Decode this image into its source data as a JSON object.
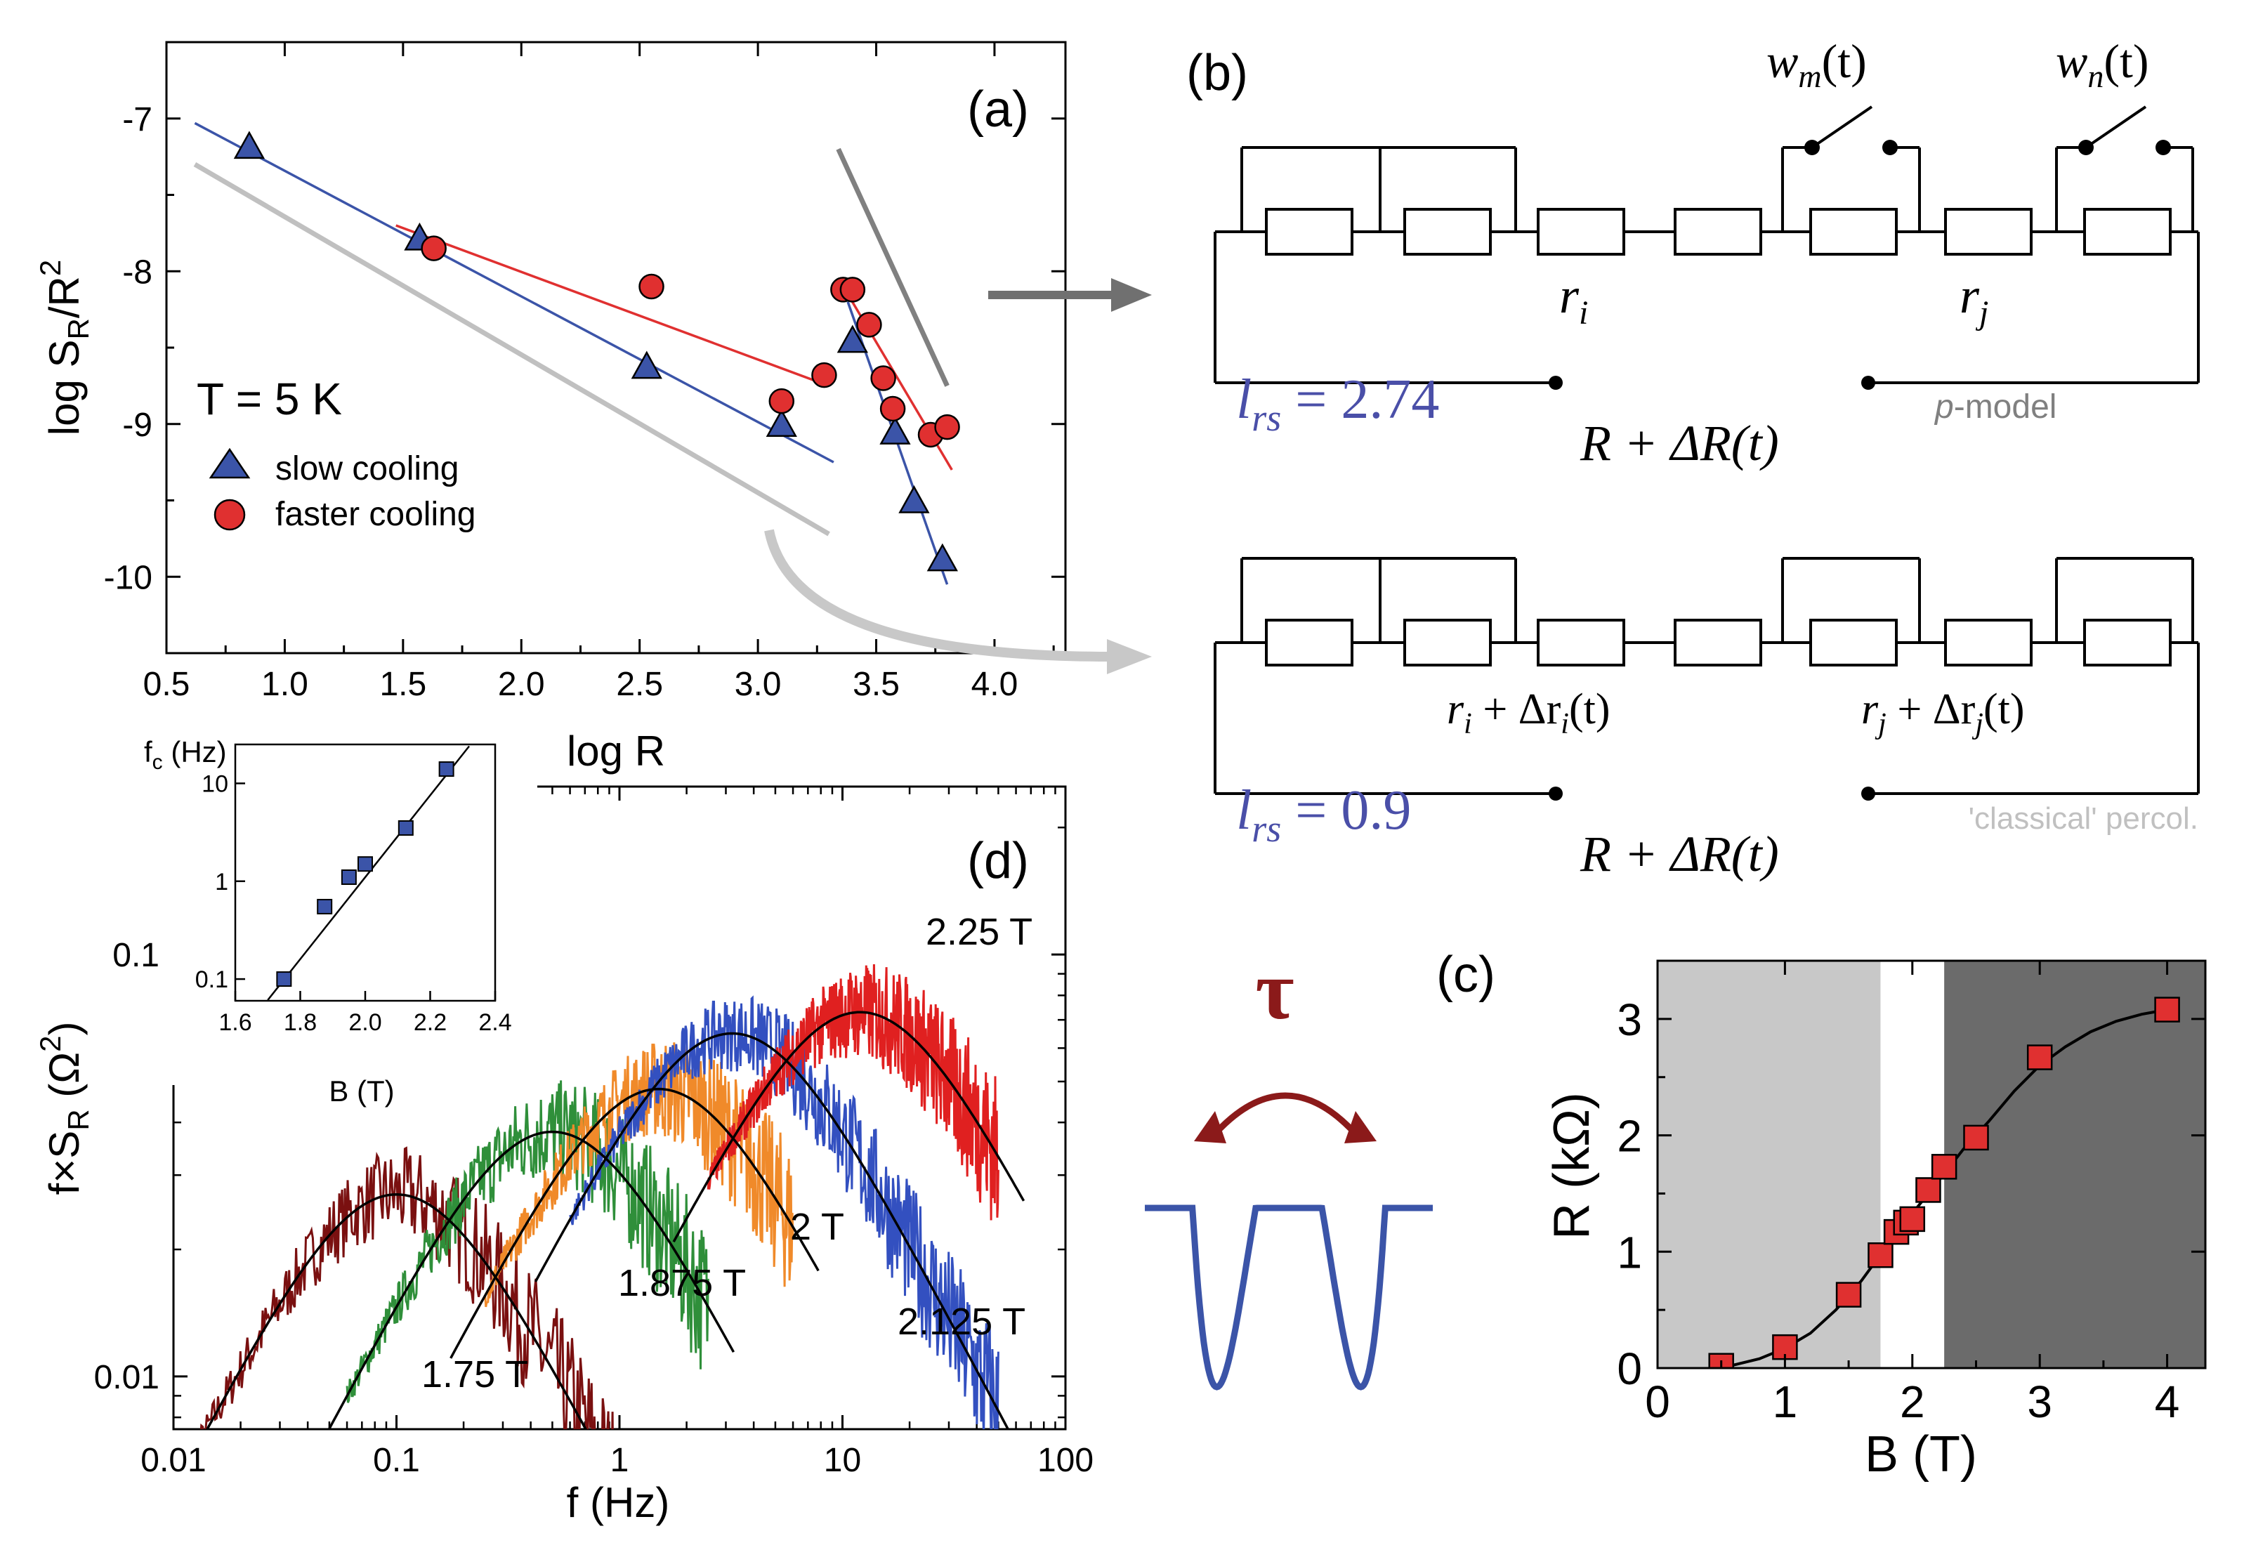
{
  "chart_data": [
    {
      "panel": "(a)",
      "type": "scatter",
      "xlabel": "log R",
      "ylabel": "log S",
      "ylabel_sub": "R",
      "ylabel_tail": "/R",
      "ylabel_sup": "2",
      "xlim": [
        0.5,
        4.3
      ],
      "ylim": [
        -10.5,
        -6.5
      ],
      "xticks": [
        "0.5",
        "1.0",
        "1.5",
        "2.0",
        "2.5",
        "3.0",
        "3.5",
        "4.0"
      ],
      "yticks": [
        "-7",
        "-8",
        "-9",
        "-10"
      ],
      "annotation": "T = 5 K",
      "legend": [
        "slow cooling",
        "faster cooling"
      ],
      "series": [
        {
          "name": "slow cooling",
          "marker": "triangle",
          "color": "#3b54a8",
          "x": [
            0.85,
            1.57,
            2.53,
            3.1,
            3.4,
            3.58,
            3.66,
            3.78
          ],
          "y": [
            -7.18,
            -7.78,
            -8.62,
            -9.0,
            -8.45,
            -9.05,
            -9.5,
            -9.88
          ]
        },
        {
          "name": "faster cooling",
          "marker": "circle",
          "color": "#e03030",
          "x": [
            1.63,
            2.55,
            3.1,
            3.28,
            3.36,
            3.4,
            3.47,
            3.53,
            3.57,
            3.73,
            3.8
          ],
          "y": [
            -7.85,
            -8.1,
            -8.85,
            -8.68,
            -8.12,
            -8.12,
            -8.35,
            -8.7,
            -8.9,
            -9.07,
            -9.02
          ]
        }
      ],
      "fit_lines": [
        {
          "color": "#3b54a8",
          "x": [
            0.62,
            3.32
          ],
          "y": [
            -7.03,
            -9.25
          ]
        },
        {
          "color": "#e03030",
          "x": [
            1.47,
            3.3
          ],
          "y": [
            -7.7,
            -8.75
          ]
        },
        {
          "color": "#3b54a8",
          "x": [
            3.38,
            3.8
          ],
          "y": [
            -8.2,
            -10.05
          ]
        },
        {
          "color": "#e03030",
          "x": [
            3.38,
            3.82
          ],
          "y": [
            -8.15,
            -9.3
          ]
        },
        {
          "color": "#c0c0c0",
          "x": [
            0.62,
            3.3
          ],
          "y": [
            -7.3,
            -9.72
          ]
        },
        {
          "color": "#808080",
          "x": [
            3.34,
            3.8
          ],
          "y": [
            -7.2,
            -8.75
          ]
        }
      ]
    },
    {
      "panel": "(c)",
      "type": "scatter",
      "xlabel": "B (T)",
      "ylabel": "R (kΩ)",
      "xlim": [
        0,
        4.3
      ],
      "ylim": [
        0,
        3.5
      ],
      "xticks": [
        "0",
        "1",
        "2",
        "3",
        "4"
      ],
      "yticks": [
        "0",
        "1",
        "2",
        "3"
      ],
      "shaded_regions": [
        {
          "from": 0,
          "to": 1.75,
          "color": "#c8c8c8"
        },
        {
          "from": 2.25,
          "to": 4.3,
          "color": "#6b6b6b"
        }
      ],
      "x": [
        0.5,
        1.0,
        1.5,
        1.75,
        1.875,
        1.95,
        2.0,
        2.125,
        2.25,
        2.5,
        3.0,
        4.0
      ],
      "y": [
        0.02,
        0.18,
        0.63,
        0.97,
        1.17,
        1.25,
        1.28,
        1.53,
        1.73,
        1.98,
        2.67,
        3.08
      ],
      "fit_curve": [
        [
          0.5,
          0.0
        ],
        [
          0.8,
          0.08
        ],
        [
          1.0,
          0.17
        ],
        [
          1.2,
          0.3
        ],
        [
          1.4,
          0.5
        ],
        [
          1.6,
          0.75
        ],
        [
          1.8,
          1.05
        ],
        [
          2.0,
          1.33
        ],
        [
          2.2,
          1.6
        ],
        [
          2.4,
          1.88
        ],
        [
          2.6,
          2.12
        ],
        [
          2.8,
          2.38
        ],
        [
          3.0,
          2.6
        ],
        [
          3.2,
          2.76
        ],
        [
          3.4,
          2.89
        ],
        [
          3.6,
          2.98
        ],
        [
          3.8,
          3.04
        ],
        [
          4.0,
          3.08
        ]
      ]
    },
    {
      "panel": "(d)",
      "type": "line",
      "xlabel": "f (Hz)",
      "ylabel": "f×S",
      "ylabel_sub": "R",
      "ylabel_tail": " (Ω",
      "ylabel_sup": "2",
      "ylabel_close": ")",
      "xscale": "log",
      "yscale": "log",
      "xlim": [
        0.01,
        100
      ],
      "ylim": [
        0.0075,
        0.25
      ],
      "xticks": [
        "0.01",
        "0.1",
        "1",
        "10",
        "100"
      ],
      "yticks": [
        "0.01",
        "0.1"
      ],
      "series": [
        {
          "name": "1.75 T",
          "color": "#7a1010",
          "peak_f": 0.1,
          "peak_y": 0.027,
          "f_range": [
            0.01,
            1.0
          ]
        },
        {
          "name": "1.875 T",
          "color": "#2f8f3a",
          "peak_f": 0.5,
          "peak_y": 0.038,
          "f_range": [
            0.06,
            2.5
          ]
        },
        {
          "name": "2 T",
          "color": "#f08a2a",
          "peak_f": 1.5,
          "peak_y": 0.048,
          "f_range": [
            0.25,
            6.0
          ]
        },
        {
          "name": "2.125 T",
          "color": "#3350c0",
          "peak_f": 3.2,
          "peak_y": 0.065,
          "f_range": [
            0.6,
            50
          ]
        },
        {
          "name": "2.25 T",
          "color": "#e02020",
          "peak_f": 12,
          "peak_y": 0.073,
          "f_range": [
            2.5,
            50
          ]
        }
      ],
      "inset": {
        "xlabel": "B (T)",
        "ylabel": "f",
        "ylabel_sub": "c",
        "ylabel_tail": " (Hz)",
        "xlim": [
          1.6,
          2.4
        ],
        "ylim_log": [
          0.06,
          25
        ],
        "xticks": [
          "1.6",
          "1.8",
          "2.0",
          "2.2",
          "2.4"
        ],
        "yticks": [
          "0.1",
          "1",
          "10"
        ],
        "x": [
          1.75,
          1.875,
          1.95,
          2.0,
          2.125,
          2.25
        ],
        "y": [
          0.1,
          0.55,
          1.1,
          1.5,
          3.5,
          14
        ]
      }
    }
  ],
  "panel_labels": {
    "a": "(a)",
    "b": "(b)",
    "c": "(c)",
    "d": "(d)"
  },
  "circuit": {
    "switch_m": "w",
    "switch_m_sub": "m",
    "switch_m_arg": "(t)",
    "switch_n": "w",
    "switch_n_sub": "n",
    "switch_n_arg": "(t)",
    "r_i": "r",
    "r_i_sub": "i",
    "r_j": "r",
    "r_j_sub": "j",
    "top_lrs_label": "l",
    "lrs_sub": "rs",
    "top_lrs_value": " = 2.74",
    "top_R": "R + ΔR(t)",
    "top_model": "p",
    "top_model_tail": "-model",
    "bottom_ri_a": "r",
    "bottom_ri_b": " + Δr",
    "bottom_ri_arg": "(t)",
    "bottom_rj_a": "r",
    "bottom_rj_b": " + Δr",
    "bottom_rj_arg": "(t)",
    "bottom_lrs_value": " = 0.9",
    "bottom_R": "R + ΔR(t)",
    "bottom_model": "'classical' percol."
  },
  "tau_symbol": "τ",
  "colors": {
    "blue": "#3b54a8",
    "red": "#e03030",
    "dark_red": "#8b1a1a",
    "lrs_blue": "#4a4fa8",
    "arrow_gray": "#707070",
    "arrow_light": "#c8c8c8"
  }
}
